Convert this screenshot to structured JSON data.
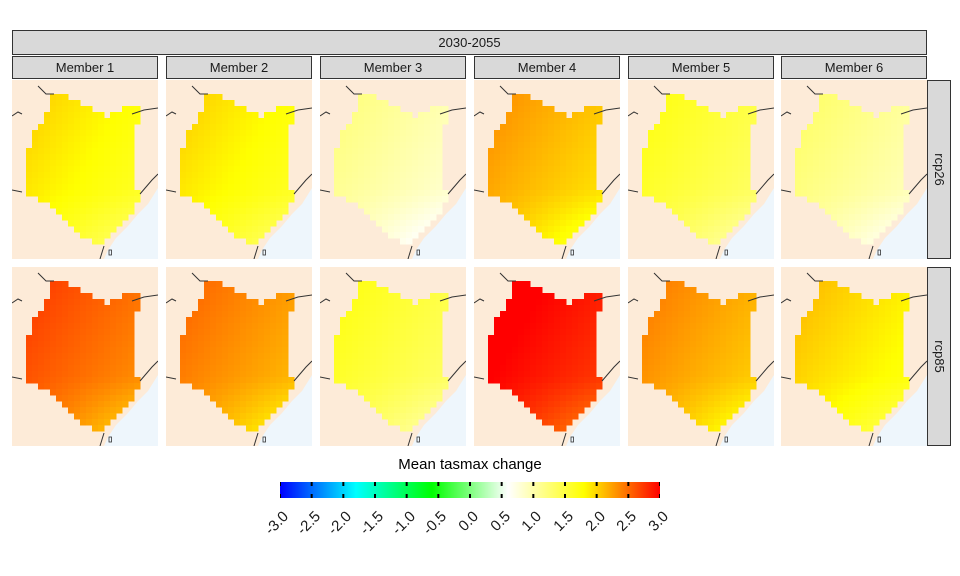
{
  "facet": {
    "period": "2030-2055",
    "members": [
      "Member 1",
      "Member 2",
      "Member 3",
      "Member 4",
      "Member 5",
      "Member 6"
    ],
    "scenarios": [
      "rcp26",
      "rcp85"
    ]
  },
  "map": {
    "region_shown": "Kenya",
    "land_color": "#fdebd8",
    "sea_color": "#eef6fc",
    "border_color": "#333333",
    "panel_mean_change": [
      [
        1.5,
        1.5,
        0.7,
        1.8,
        1.2,
        0.8
      ],
      [
        2.2,
        2.0,
        1.2,
        2.6,
        1.9,
        1.6
      ]
    ]
  },
  "legend": {
    "title": "Mean tasmax change",
    "ticks": [
      "-3.0",
      "-2.5",
      "-2.0",
      "-1.5",
      "-1.0",
      "-0.5",
      "0.0",
      "0.5",
      "1.0",
      "1.5",
      "2.0",
      "2.5",
      "3.0"
    ],
    "range": [
      -3.0,
      3.0
    ],
    "colors": [
      "#0000ff",
      "#00ffff",
      "#00ff00",
      "#ffffff",
      "#ffff00",
      "#ff0000"
    ]
  }
}
